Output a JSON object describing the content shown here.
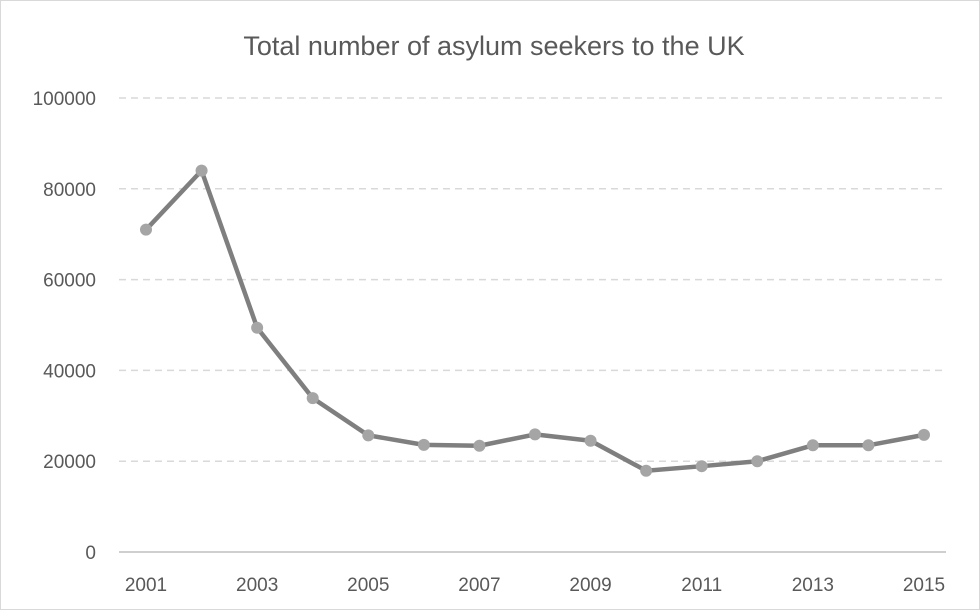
{
  "chart_data": {
    "type": "line",
    "title": "Total number of asylum seekers to the UK",
    "xlabel": "",
    "ylabel": "",
    "x": [
      2001,
      2002,
      2003,
      2004,
      2005,
      2006,
      2007,
      2008,
      2009,
      2010,
      2011,
      2012,
      2013,
      2014,
      2015
    ],
    "x_tick_labels": [
      "2001",
      "2003",
      "2005",
      "2007",
      "2009",
      "2011",
      "2013",
      "2015"
    ],
    "y_tick_labels": [
      "0",
      "20000",
      "40000",
      "60000",
      "80000",
      "100000"
    ],
    "ylim": [
      0,
      100000
    ],
    "grid": true,
    "legend": "none",
    "series": [
      {
        "values": [
          71000,
          84000,
          49400,
          33900,
          25700,
          23600,
          23400,
          25900,
          24500,
          17900,
          18900,
          20000,
          23500,
          23500,
          25800
        ]
      }
    ],
    "colors": {
      "line": "#7f7f7f",
      "marker": "#a5a5a5",
      "grid": "#d9d9d9",
      "axis": "#bfbfbf",
      "text": "#595959"
    }
  }
}
